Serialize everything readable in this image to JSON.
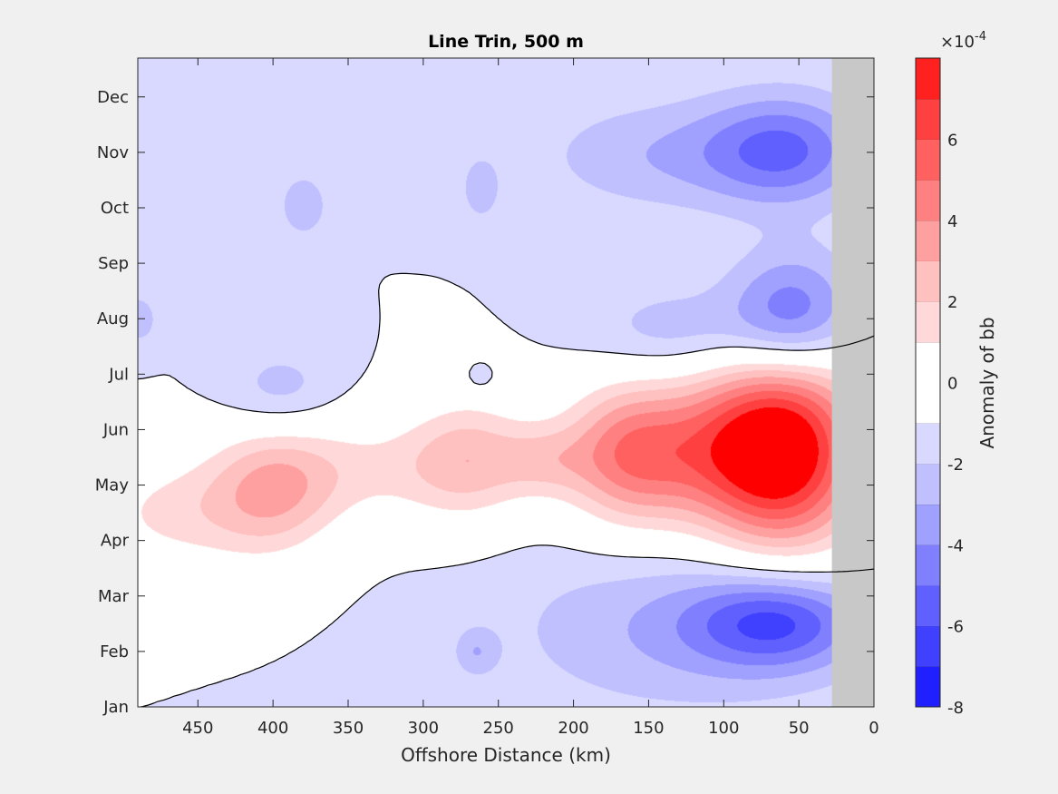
{
  "chart_data": {
    "type": "heatmap",
    "subtype": "filled-contour",
    "title": "Line Trin, 500 m",
    "xlabel": "Offshore Distance (km)",
    "ylabel": "",
    "xlim": [
      490,
      0
    ],
    "x_reversed": true,
    "x_ticks": [
      450,
      400,
      350,
      300,
      250,
      200,
      150,
      100,
      50,
      0
    ],
    "y_months": [
      "Jan",
      "Feb",
      "Mar",
      "Apr",
      "May",
      "Jun",
      "Jul",
      "Aug",
      "Sep",
      "Oct",
      "Nov",
      "Dec"
    ],
    "colorbar": {
      "label": "Anomaly of bb",
      "exponent_label": "×10",
      "exponent_power": "-4",
      "range": [
        -8,
        8
      ],
      "ticks": [
        -8,
        -6,
        -4,
        -2,
        0,
        2,
        4,
        6
      ],
      "levels": [
        -8,
        -7,
        -6,
        -5,
        -4,
        -3,
        -2,
        -1,
        0,
        1,
        2,
        3,
        4,
        5,
        6,
        7,
        8
      ],
      "colors": [
        "#0000ff",
        "#2020ff",
        "#4040ff",
        "#6060ff",
        "#8080ff",
        "#a0a0ff",
        "#c0c0ff",
        "#d9d9ff",
        "#ffffff",
        "#ffffff",
        "#ffd9d9",
        "#ffc0c0",
        "#ffa0a0",
        "#ff8080",
        "#ff6060",
        "#ff4040",
        "#ff2020",
        "#ff0000"
      ]
    },
    "nodata_region": {
      "x_from": 28,
      "x_to": 0,
      "color": "#c8c8c8"
    },
    "zero_contour_color": "#000000",
    "features": [
      {
        "x": 60,
        "y_month": 4.65,
        "rx": 38,
        "ry": 1.35,
        "value": 8.0
      },
      {
        "x": 120,
        "y_month": 4.6,
        "rx": 55,
        "ry": 0.95,
        "value": 4.2
      },
      {
        "x": 165,
        "y_month": 4.55,
        "rx": 28,
        "ry": 0.9,
        "value": 3.2
      },
      {
        "x": 270,
        "y_month": 4.5,
        "rx": 28,
        "ry": 0.8,
        "value": 2.8
      },
      {
        "x": 220,
        "y_month": 4.45,
        "rx": 22,
        "ry": 0.45,
        "value": 1.8
      },
      {
        "x": 335,
        "y_month": 4.3,
        "rx": 55,
        "ry": 0.7,
        "value": 2.0
      },
      {
        "x": 400,
        "y_month": 3.9,
        "rx": 30,
        "ry": 0.85,
        "value": 3.2
      },
      {
        "x": 465,
        "y_month": 3.5,
        "rx": 45,
        "ry": 0.75,
        "value": 2.2
      },
      {
        "x": 65,
        "y_month": 1.55,
        "rx": 40,
        "ry": 0.6,
        "value": -4.5
      },
      {
        "x": 130,
        "y_month": 1.4,
        "rx": 80,
        "ry": 1.05,
        "value": -2.0
      },
      {
        "x": 265,
        "y_month": 1.0,
        "rx": 10,
        "ry": 0.3,
        "value": -1.6
      },
      {
        "x": 55,
        "y_month": 7.05,
        "rx": 30,
        "ry": 0.8,
        "value": -4.5
      },
      {
        "x": 130,
        "y_month": 6.75,
        "rx": 42,
        "ry": 0.6,
        "value": -1.8
      },
      {
        "x": 395,
        "y_month": 5.7,
        "rx": 26,
        "ry": 0.55,
        "value": -1.6
      },
      {
        "x": 262,
        "y_month": 5.95,
        "rx": 6,
        "ry": 0.15,
        "value": -1.3
      },
      {
        "x": 60,
        "y_month": 10.05,
        "rx": 38,
        "ry": 0.7,
        "value": -4.0
      },
      {
        "x": 145,
        "y_month": 9.95,
        "rx": 55,
        "ry": 0.7,
        "value": -1.8
      },
      {
        "x": 380,
        "y_month": 9.05,
        "rx": 14,
        "ry": 0.5,
        "value": -1.5
      },
      {
        "x": 262,
        "y_month": 9.35,
        "rx": 10,
        "ry": 0.45,
        "value": -1.5
      },
      {
        "x": 490,
        "y_month": 7.0,
        "rx": 10,
        "ry": 0.35,
        "value": -1.6
      }
    ]
  }
}
